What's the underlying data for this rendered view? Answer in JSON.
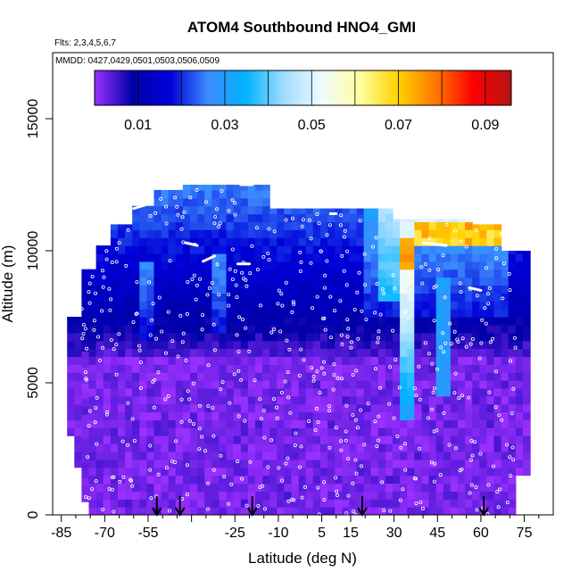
{
  "chart_data": {
    "type": "heatmap",
    "title": "ATOM4 Southbound HNO4_GMI",
    "flights_label": "Flts: 2,3,4,5,6,7",
    "dates_label": "MMDD: 0427,0429,0501,0503,0506,0509",
    "xlabel": "Latitude (deg N)",
    "ylabel": "Altitude (m)",
    "xlim": [
      -88,
      85
    ],
    "ylim": [
      0,
      17500
    ],
    "x_ticks": [
      -85,
      -70,
      -55,
      -40,
      -25,
      -10,
      5,
      15,
      30,
      45,
      60,
      75
    ],
    "x_tick_labels": [
      "-85",
      "-70",
      "-55",
      "",
      "-25",
      "-10",
      "5",
      "15",
      "30",
      "45",
      "60",
      "75"
    ],
    "x_minor_ticks": [
      -80,
      -75,
      -65,
      -60,
      -50,
      -45,
      -35,
      -30,
      -20,
      -15,
      -5,
      0,
      10,
      20,
      25,
      35,
      40,
      50,
      55,
      65,
      70,
      80
    ],
    "y_ticks": [
      0,
      5000,
      10000,
      15000
    ],
    "y_tick_labels": [
      "0",
      "5000",
      "10000",
      "15000"
    ],
    "colorbar": {
      "range": [
        0,
        0.096
      ],
      "tick_values": [
        0.01,
        0.03,
        0.05,
        0.07,
        0.09
      ],
      "tick_labels": [
        "0.01",
        "0.03",
        "0.05",
        "0.07",
        "0.09"
      ],
      "breaks": [
        0.01,
        0.02,
        0.03,
        0.04,
        0.05,
        0.06,
        0.07,
        0.08,
        0.09
      ],
      "colors": [
        "#9a30ff",
        "#0000a8",
        "#0000d8",
        "#3c8cff",
        "#00b4ff",
        "#a0dcff",
        "#f0faff",
        "#ffffa0",
        "#ffd200",
        "#ff7800",
        "#ff0000",
        "#b41414"
      ]
    },
    "profile_arrows_lat": [
      -52,
      -44,
      -19,
      19,
      61
    ],
    "grid": false,
    "legend": "colorbar top"
  }
}
